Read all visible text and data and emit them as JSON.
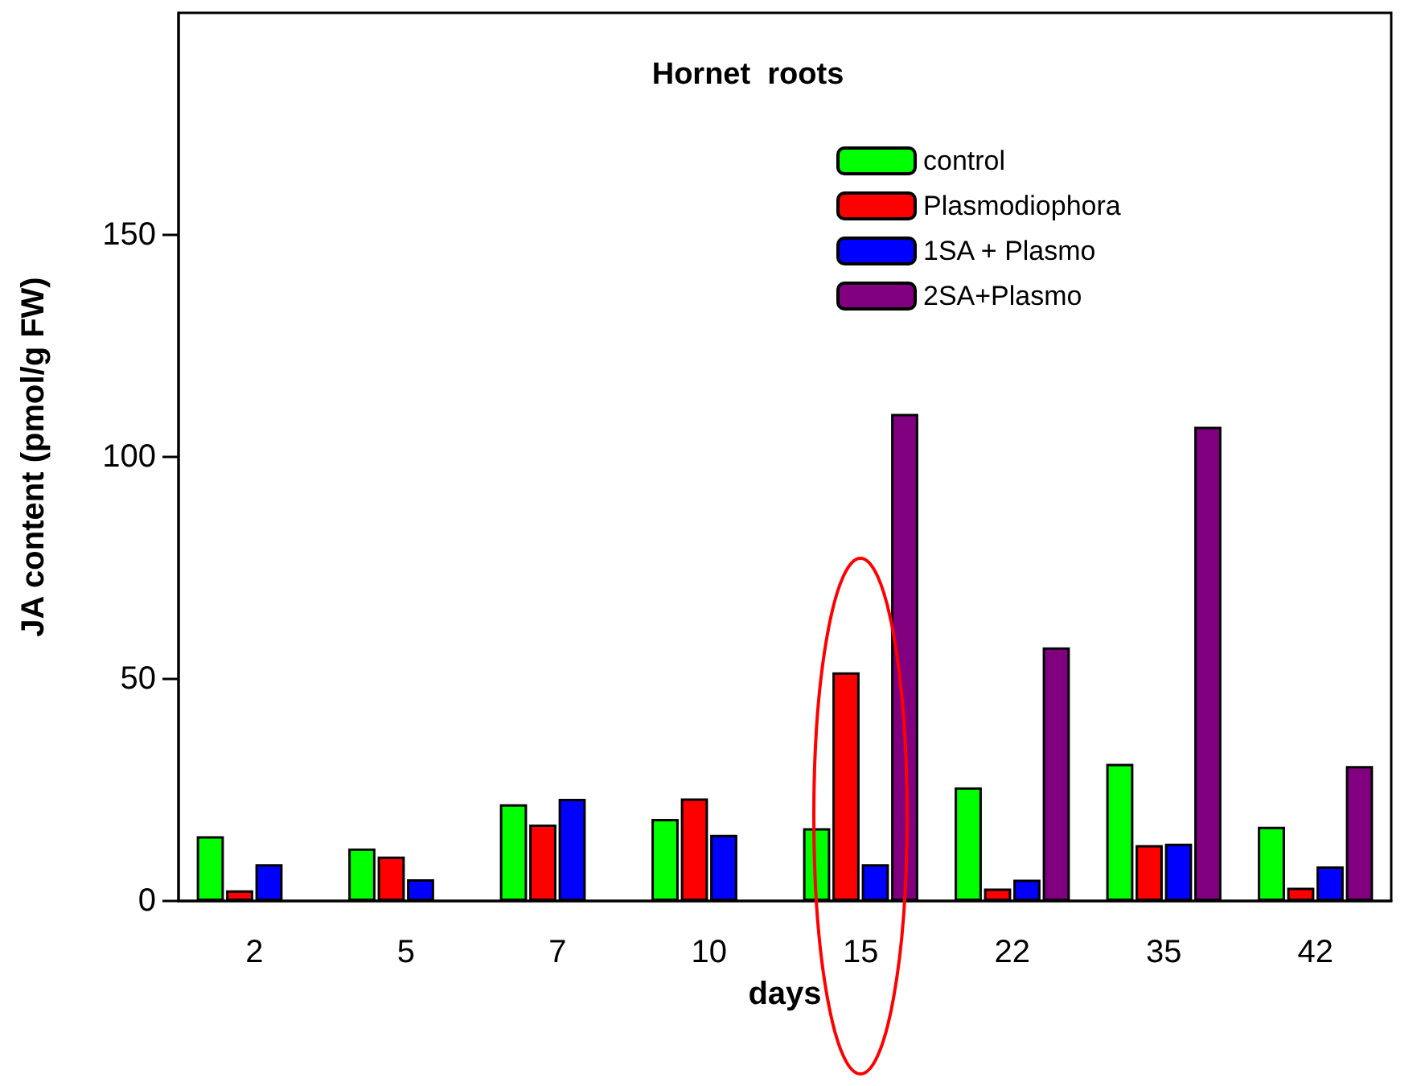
{
  "chart_data": {
    "type": "bar",
    "title": "Hornet  roots",
    "xlabel": "days",
    "ylabel": "JA content (pmol/g FW)",
    "categories": [
      "2",
      "5",
      "7",
      "10",
      "15",
      "22",
      "35",
      "42"
    ],
    "series": [
      {
        "name": "control",
        "color": "#00ff00",
        "values": [
          14.6,
          11.8,
          21.8,
          18.5,
          16.4,
          25.6,
          30.9,
          16.7
        ]
      },
      {
        "name": "Plasmodiophora",
        "color": "#ff0000",
        "values": [
          2.4,
          10.0,
          17.2,
          23.1,
          51.5,
          2.8,
          12.6,
          3.0
        ]
      },
      {
        "name": "1SA + Plasmo",
        "color": "#0000ff",
        "values": [
          8.3,
          4.9,
          23.0,
          14.9,
          8.3,
          4.8,
          12.9,
          7.8
        ]
      },
      {
        "name": "2SA+Plasmo",
        "color": "#800080",
        "values": [
          null,
          null,
          null,
          null,
          109.7,
          57.1,
          106.8,
          30.4
        ]
      }
    ],
    "ylim": [
      0,
      200
    ],
    "yticks": [
      0,
      50,
      100,
      150
    ],
    "grid": false,
    "legend": "top right"
  }
}
